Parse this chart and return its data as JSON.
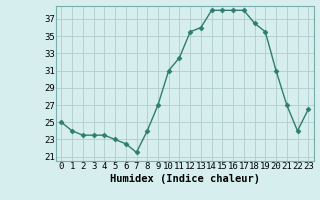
{
  "x": [
    0,
    1,
    2,
    3,
    4,
    5,
    6,
    7,
    8,
    9,
    10,
    11,
    12,
    13,
    14,
    15,
    16,
    17,
    18,
    19,
    20,
    21,
    22,
    23
  ],
  "y": [
    25,
    24,
    23.5,
    23.5,
    23.5,
    23,
    22.5,
    21.5,
    24,
    27,
    31,
    32.5,
    35.5,
    36,
    38,
    38,
    38,
    38,
    36.5,
    35.5,
    31,
    27,
    24,
    26.5
  ],
  "line_color": "#2e7d6e",
  "marker": "D",
  "marker_size": 2.5,
  "bg_color": "#d6eeee",
  "grid_color": "#b0cccc",
  "xlabel": "Humidex (Indice chaleur)",
  "xlim": [
    -0.5,
    23.5
  ],
  "ylim": [
    20.5,
    38.5
  ],
  "yticks": [
    21,
    23,
    25,
    27,
    29,
    31,
    33,
    35,
    37
  ],
  "xticks": [
    0,
    1,
    2,
    3,
    4,
    5,
    6,
    7,
    8,
    9,
    10,
    11,
    12,
    13,
    14,
    15,
    16,
    17,
    18,
    19,
    20,
    21,
    22,
    23
  ],
  "xlabel_fontsize": 7.5,
  "tick_fontsize": 6.5
}
